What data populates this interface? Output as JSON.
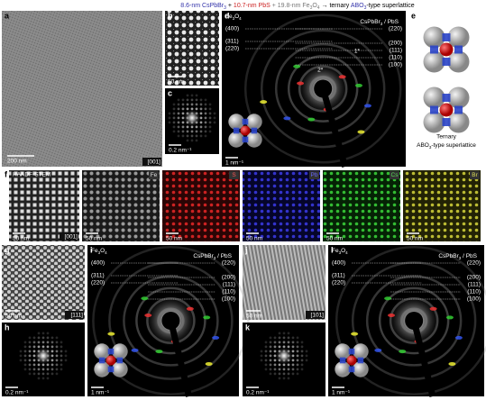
{
  "title": [
    "8.6-nm CsPbBr",
    "3",
    " + ",
    "10.7-nm PbS",
    " + 19.8-nm Fe",
    "3",
    "O",
    "4",
    " → ternary ",
    "ABO",
    "3",
    "-type superlattice"
  ],
  "panel_a": {
    "label": "a",
    "scale": "200 nm",
    "zone": "[001]"
  },
  "panel_b": {
    "label": "b",
    "scale": "50 nm"
  },
  "panel_c": {
    "label": "c",
    "scale": "0.2 nm⁻¹"
  },
  "panel_d": {
    "label": "d",
    "fe3o4": [
      "Fe",
      "3",
      "O",
      "4"
    ],
    "left_planes": [
      "(400)",
      "(311)",
      "(220)"
    ],
    "heading": [
      "CsPbBr",
      "3",
      " / PbS"
    ],
    "right_planes": [
      "(220)",
      "(200)",
      "(111)",
      "(110)",
      "(100)"
    ],
    "markers": [
      "1*",
      "2*"
    ],
    "scale": "1 nm⁻¹"
  },
  "panel_e": {
    "label": "e",
    "caption": "Ternary",
    "caption2": [
      "ABO",
      "3",
      "-type superlattice"
    ]
  },
  "panel_f": {
    "label": "f",
    "mode": "HAADF-STEM",
    "elements": [
      "Fe",
      "S",
      "Pb",
      "Cs",
      "Br"
    ],
    "scale": "50 nm",
    "zone": "[001]"
  },
  "panel_g": {
    "label": "g",
    "scale": "50 nm",
    "zone": "[111]"
  },
  "panel_h": {
    "label": "h",
    "scale": "0.2 nm⁻¹"
  },
  "panel_i": {
    "label": "i",
    "fe3o4": [
      "Fe",
      "3",
      "O",
      "4"
    ],
    "left_planes": [
      "(400)",
      "(311)",
      "(220)"
    ],
    "heading": [
      "CsPbBr",
      "3",
      " / PbS"
    ],
    "right_planes": [
      "(220)",
      "(200)",
      "(111)",
      "(110)",
      "(100)"
    ],
    "scale": "1 nm⁻¹"
  },
  "panel_j": {
    "label": "j",
    "scale": "50 nm",
    "zone": "[101]"
  },
  "panel_k": {
    "label": "k",
    "scale": "0.2 nm⁻¹"
  },
  "panel_l": {
    "label": "l",
    "fe3o4": [
      "Fe",
      "3",
      "O",
      "4"
    ],
    "left_planes": [
      "(400)",
      "(311)",
      "(220)"
    ],
    "heading": [
      "CsPbBr",
      "3",
      " / PbS"
    ],
    "right_planes": [
      "(220)",
      "(200)",
      "(111)",
      "(110)",
      "(100)"
    ],
    "scale": "1 nm⁻¹"
  }
}
